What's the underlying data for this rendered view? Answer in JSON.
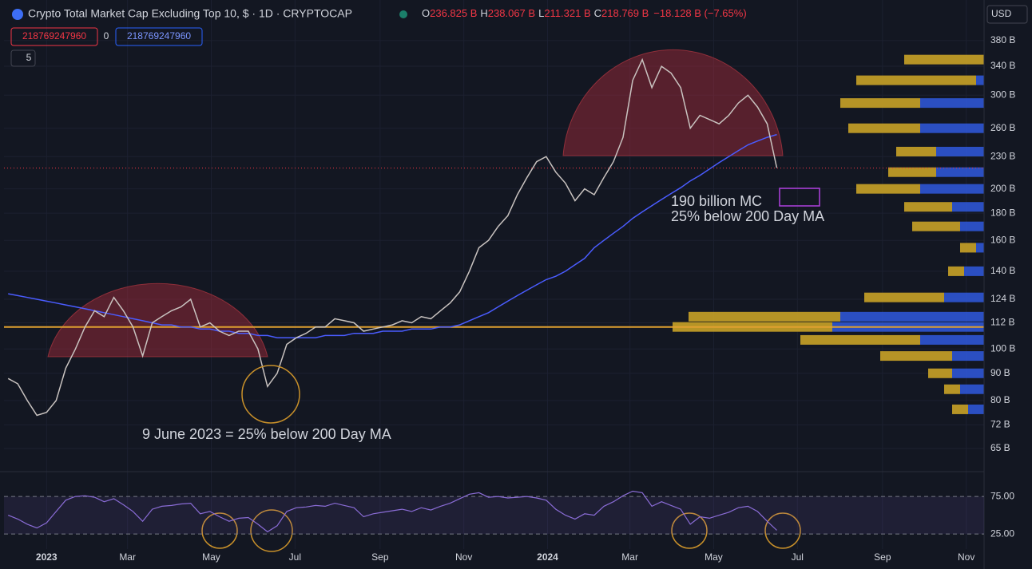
{
  "chart_data": {
    "type": "line",
    "title": "Crypto Total Market Cap Excluding Top 10, $ · 1D · CRYPTOCAP",
    "ohlc": {
      "labels": [
        "O",
        "H",
        "L",
        "C"
      ],
      "values": [
        236.825,
        238.067,
        211.321,
        218.769
      ],
      "value_labels": [
        "236.825 B",
        "238.067 B",
        "211.321 B",
        "218.769 B"
      ],
      "change": "−18.128 B (−7.65%)"
    },
    "indicator_boxes": [
      "218769247960",
      "0",
      "218769247960"
    ],
    "indicator_count": "5",
    "currency": "USD",
    "annotations": [
      "190 billion MC",
      "25% below 200 Day MA",
      "9 June 2023 = 25% below 200 Day MA"
    ],
    "log_scale": true,
    "grid": true,
    "ylim": [
      59,
      453
    ],
    "yticks": [
      {
        "value": 65,
        "label": "65 B"
      },
      {
        "value": 72,
        "label": "72 B"
      },
      {
        "value": 80,
        "label": "80 B"
      },
      {
        "value": 90,
        "label": "90 B"
      },
      {
        "value": 100,
        "label": "100 B"
      },
      {
        "value": 112,
        "label": "112 B"
      },
      {
        "value": 124,
        "label": "124 B"
      },
      {
        "value": 140,
        "label": "140 B"
      },
      {
        "value": 160,
        "label": "160 B"
      },
      {
        "value": 180,
        "label": "180 B"
      },
      {
        "value": 200,
        "label": "200 B"
      },
      {
        "value": 230,
        "label": "230 B"
      },
      {
        "value": 260,
        "label": "260 B"
      },
      {
        "value": 300,
        "label": "300 B"
      },
      {
        "value": 340,
        "label": "340 B"
      },
      {
        "value": 380,
        "label": "380 B"
      }
    ],
    "xlim": [
      "2022-12-01",
      "2024-11-14"
    ],
    "xticks": [
      {
        "value": "2023-01-01",
        "label": "2023"
      },
      {
        "value": "2023-03-01",
        "label": "Mar"
      },
      {
        "value": "2023-05-01",
        "label": "May"
      },
      {
        "value": "2023-07-01",
        "label": "Jul"
      },
      {
        "value": "2023-09-01",
        "label": "Sep"
      },
      {
        "value": "2023-11-01",
        "label": "Nov"
      },
      {
        "value": "2024-01-01",
        "label": "2024"
      },
      {
        "value": "2024-03-01",
        "label": "Mar"
      },
      {
        "value": "2024-05-01",
        "label": "May"
      },
      {
        "value": "2024-07-01",
        "label": "Jul"
      },
      {
        "value": "2024-09-01",
        "label": "Sep"
      },
      {
        "value": "2024-11-01",
        "label": "Nov"
      }
    ],
    "support_level": 110,
    "price": {
      "color": "#c9c3c0",
      "x": [
        "2022-12-04",
        "2022-12-11",
        "2022-12-18",
        "2022-12-25",
        "2023-01-01",
        "2023-01-08",
        "2023-01-15",
        "2023-01-22",
        "2023-01-29",
        "2023-02-05",
        "2023-02-12",
        "2023-02-19",
        "2023-02-26",
        "2023-03-05",
        "2023-03-12",
        "2023-03-19",
        "2023-03-26",
        "2023-04-02",
        "2023-04-09",
        "2023-04-16",
        "2023-04-23",
        "2023-04-30",
        "2023-05-07",
        "2023-05-14",
        "2023-05-21",
        "2023-05-28",
        "2023-06-04",
        "2023-06-11",
        "2023-06-18",
        "2023-06-25",
        "2023-07-02",
        "2023-07-09",
        "2023-07-16",
        "2023-07-23",
        "2023-07-30",
        "2023-08-06",
        "2023-08-13",
        "2023-08-20",
        "2023-08-27",
        "2023-09-03",
        "2023-09-10",
        "2023-09-17",
        "2023-09-24",
        "2023-10-01",
        "2023-10-08",
        "2023-10-15",
        "2023-10-22",
        "2023-10-29",
        "2023-11-05",
        "2023-11-12",
        "2023-11-19",
        "2023-11-26",
        "2023-12-03",
        "2023-12-10",
        "2023-12-17",
        "2023-12-24",
        "2023-12-31",
        "2024-01-07",
        "2024-01-14",
        "2024-01-21",
        "2024-01-28",
        "2024-02-04",
        "2024-02-11",
        "2024-02-18",
        "2024-02-25",
        "2024-03-03",
        "2024-03-10",
        "2024-03-17",
        "2024-03-24",
        "2024-03-31",
        "2024-04-07",
        "2024-04-14",
        "2024-04-21",
        "2024-04-28",
        "2024-05-05",
        "2024-05-12",
        "2024-05-19",
        "2024-05-26",
        "2024-06-02",
        "2024-06-09",
        "2024-06-16"
      ],
      "values": [
        88,
        86,
        80,
        75,
        76,
        80,
        92,
        100,
        110,
        118,
        115,
        125,
        118,
        110,
        97,
        112,
        115,
        118,
        120,
        124,
        110,
        112,
        108,
        106,
        108,
        108,
        100,
        85,
        90,
        102,
        105,
        107,
        110,
        110,
        114,
        113,
        112,
        108,
        109,
        110,
        111,
        113,
        112,
        115,
        114,
        118,
        122,
        128,
        140,
        155,
        160,
        170,
        178,
        195,
        210,
        225,
        230,
        215,
        205,
        190,
        200,
        195,
        210,
        225,
        250,
        320,
        350,
        310,
        340,
        330,
        310,
        260,
        275,
        270,
        265,
        275,
        290,
        300,
        285,
        265,
        219
      ]
    },
    "ma": {
      "color": "#4a5cff",
      "values": [
        127,
        126,
        125,
        124,
        123,
        122,
        121,
        120,
        119,
        118,
        117,
        116,
        115,
        114,
        113,
        112,
        111,
        111,
        110,
        110,
        109,
        109,
        108,
        108,
        107,
        107,
        106,
        106,
        105,
        105,
        105,
        105,
        105,
        106,
        106,
        106,
        107,
        107,
        107,
        108,
        108,
        108,
        109,
        109,
        109,
        110,
        110,
        111,
        113,
        115,
        117,
        120,
        123,
        126,
        129,
        132,
        135,
        137,
        140,
        144,
        148,
        155,
        160,
        165,
        170,
        176,
        181,
        186,
        191,
        196,
        201,
        207,
        212,
        218,
        224,
        230,
        236,
        242,
        246,
        250,
        253
      ]
    },
    "rsi": {
      "color": "#8a6cd6",
      "ylim": [
        5,
        107
      ],
      "yticks": [
        {
          "value": 75,
          "label": "75.00"
        },
        {
          "value": 25,
          "label": "25.00"
        }
      ],
      "values": [
        50,
        45,
        38,
        33,
        40,
        55,
        70,
        75,
        76,
        74,
        68,
        72,
        64,
        55,
        42,
        58,
        62,
        63,
        65,
        66,
        52,
        55,
        48,
        42,
        46,
        47,
        38,
        28,
        36,
        55,
        60,
        61,
        63,
        62,
        66,
        63,
        60,
        48,
        52,
        54,
        56,
        58,
        55,
        60,
        57,
        62,
        66,
        72,
        78,
        80,
        74,
        75,
        73,
        74,
        75,
        73,
        70,
        58,
        50,
        45,
        52,
        50,
        62,
        68,
        76,
        82,
        80,
        62,
        68,
        63,
        58,
        38,
        48,
        46,
        50,
        54,
        60,
        62,
        55,
        42,
        30
      ]
    },
    "volume_profile": {
      "levels": [
        350,
        320,
        290,
        260,
        235,
        215,
        200,
        185,
        170,
        155,
        140,
        125,
        115,
        110,
        104,
        97,
        90,
        84,
        77
      ],
      "up": [
        0,
        10,
        80,
        80,
        60,
        60,
        80,
        40,
        30,
        10,
        25,
        50,
        180,
        190,
        80,
        40,
        40,
        30,
        20
      ],
      "down": [
        100,
        150,
        100,
        90,
        50,
        60,
        80,
        60,
        60,
        20,
        20,
        100,
        190,
        200,
        150,
        90,
        30,
        20,
        20
      ],
      "up_color": "#2f55d4",
      "down_color": "#c9a227"
    }
  }
}
